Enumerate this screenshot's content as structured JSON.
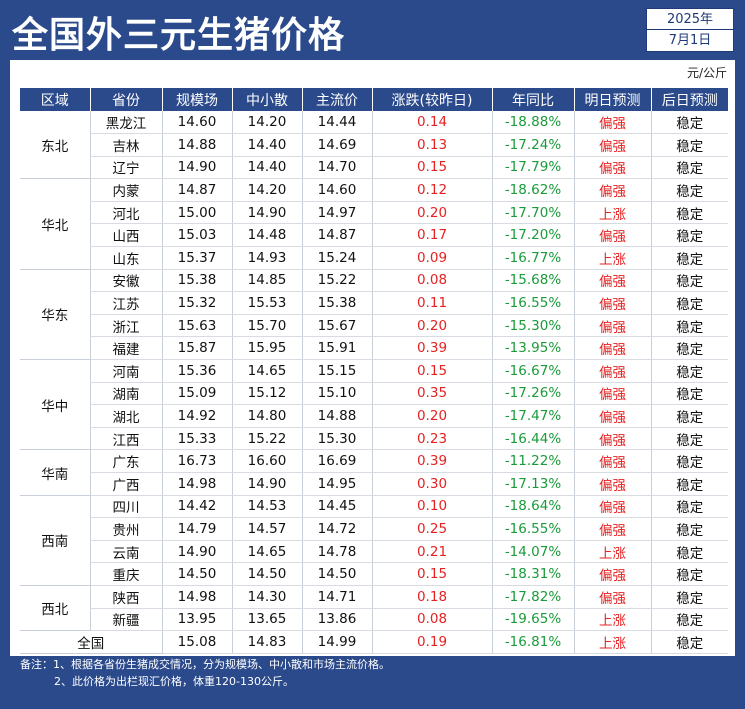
{
  "title": "全国外三元生猪价格",
  "date": {
    "year": "2025年",
    "monthday": "7月1日"
  },
  "unit": "元/公斤",
  "columns": [
    "区域",
    "省份",
    "规模场",
    "中小散",
    "主流价",
    "涨跌(较昨日)",
    "年同比",
    "明日预测",
    "后日预测"
  ],
  "rows": [
    {
      "province": "黑龙江",
      "large": "14.60",
      "small": "14.20",
      "main": "14.44",
      "change": "0.14",
      "yoy": "-18.88%",
      "tomorrow": "偏强",
      "after": "稳定"
    },
    {
      "province": "吉林",
      "large": "14.88",
      "small": "14.40",
      "main": "14.69",
      "change": "0.13",
      "yoy": "-17.24%",
      "tomorrow": "偏强",
      "after": "稳定"
    },
    {
      "province": "辽宁",
      "large": "14.90",
      "small": "14.40",
      "main": "14.70",
      "change": "0.15",
      "yoy": "-17.79%",
      "tomorrow": "偏强",
      "after": "稳定"
    },
    {
      "province": "内蒙",
      "large": "14.87",
      "small": "14.20",
      "main": "14.60",
      "change": "0.12",
      "yoy": "-18.62%",
      "tomorrow": "偏强",
      "after": "稳定"
    },
    {
      "province": "河北",
      "large": "15.00",
      "small": "14.90",
      "main": "14.97",
      "change": "0.20",
      "yoy": "-17.70%",
      "tomorrow": "上涨",
      "after": "稳定"
    },
    {
      "province": "山西",
      "large": "15.03",
      "small": "14.48",
      "main": "14.87",
      "change": "0.17",
      "yoy": "-17.20%",
      "tomorrow": "偏强",
      "after": "稳定"
    },
    {
      "province": "山东",
      "large": "15.37",
      "small": "14.93",
      "main": "15.24",
      "change": "0.09",
      "yoy": "-16.77%",
      "tomorrow": "上涨",
      "after": "稳定"
    },
    {
      "province": "安徽",
      "large": "15.38",
      "small": "14.85",
      "main": "15.22",
      "change": "0.08",
      "yoy": "-15.68%",
      "tomorrow": "偏强",
      "after": "稳定"
    },
    {
      "province": "江苏",
      "large": "15.32",
      "small": "15.53",
      "main": "15.38",
      "change": "0.11",
      "yoy": "-16.55%",
      "tomorrow": "偏强",
      "after": "稳定"
    },
    {
      "province": "浙江",
      "large": "15.63",
      "small": "15.70",
      "main": "15.67",
      "change": "0.20",
      "yoy": "-15.30%",
      "tomorrow": "偏强",
      "after": "稳定"
    },
    {
      "province": "福建",
      "large": "15.87",
      "small": "15.95",
      "main": "15.91",
      "change": "0.39",
      "yoy": "-13.95%",
      "tomorrow": "偏强",
      "after": "稳定"
    },
    {
      "province": "河南",
      "large": "15.36",
      "small": "14.65",
      "main": "15.15",
      "change": "0.15",
      "yoy": "-16.67%",
      "tomorrow": "偏强",
      "after": "稳定"
    },
    {
      "province": "湖南",
      "large": "15.09",
      "small": "15.12",
      "main": "15.10",
      "change": "0.35",
      "yoy": "-17.26%",
      "tomorrow": "偏强",
      "after": "稳定"
    },
    {
      "province": "湖北",
      "large": "14.92",
      "small": "14.80",
      "main": "14.88",
      "change": "0.20",
      "yoy": "-17.47%",
      "tomorrow": "偏强",
      "after": "稳定"
    },
    {
      "province": "江西",
      "large": "15.33",
      "small": "15.22",
      "main": "15.30",
      "change": "0.23",
      "yoy": "-16.44%",
      "tomorrow": "偏强",
      "after": "稳定"
    },
    {
      "province": "广东",
      "large": "16.73",
      "small": "16.60",
      "main": "16.69",
      "change": "0.39",
      "yoy": "-11.22%",
      "tomorrow": "偏强",
      "after": "稳定"
    },
    {
      "province": "广西",
      "large": "14.98",
      "small": "14.90",
      "main": "14.95",
      "change": "0.30",
      "yoy": "-17.13%",
      "tomorrow": "偏强",
      "after": "稳定"
    },
    {
      "province": "四川",
      "large": "14.42",
      "small": "14.53",
      "main": "14.45",
      "change": "0.10",
      "yoy": "-18.64%",
      "tomorrow": "偏强",
      "after": "稳定"
    },
    {
      "province": "贵州",
      "large": "14.79",
      "small": "14.57",
      "main": "14.72",
      "change": "0.25",
      "yoy": "-16.55%",
      "tomorrow": "偏强",
      "after": "稳定"
    },
    {
      "province": "云南",
      "large": "14.90",
      "small": "14.65",
      "main": "14.78",
      "change": "0.21",
      "yoy": "-14.07%",
      "tomorrow": "上涨",
      "after": "稳定"
    },
    {
      "province": "重庆",
      "large": "14.50",
      "small": "14.50",
      "main": "14.50",
      "change": "0.15",
      "yoy": "-18.31%",
      "tomorrow": "偏强",
      "after": "稳定"
    },
    {
      "province": "陕西",
      "large": "14.98",
      "small": "14.30",
      "main": "14.71",
      "change": "0.18",
      "yoy": "-17.82%",
      "tomorrow": "偏强",
      "after": "稳定"
    },
    {
      "province": "新疆",
      "large": "13.95",
      "small": "13.65",
      "main": "13.86",
      "change": "0.08",
      "yoy": "-19.65%",
      "tomorrow": "上涨",
      "after": "稳定"
    }
  ],
  "regions": [
    {
      "name": "东北",
      "span": 3
    },
    {
      "name": "华北",
      "span": 4
    },
    {
      "name": "华东",
      "span": 4
    },
    {
      "name": "华中",
      "span": 4
    },
    {
      "name": "华南",
      "span": 2
    },
    {
      "name": "西南",
      "span": 4
    },
    {
      "name": "西北",
      "span": 2
    }
  ],
  "national": {
    "label": "全国",
    "large": "15.08",
    "small": "14.83",
    "main": "14.99",
    "change": "0.19",
    "yoy": "-16.81%",
    "tomorrow": "上涨",
    "after": "稳定"
  },
  "notes": [
    "备注：1、根据各省份生猪成交情况，分为规模场、中小散和市场主流价格。",
    "2、此价格为出栏现汇价格，体重120-130公斤。"
  ]
}
